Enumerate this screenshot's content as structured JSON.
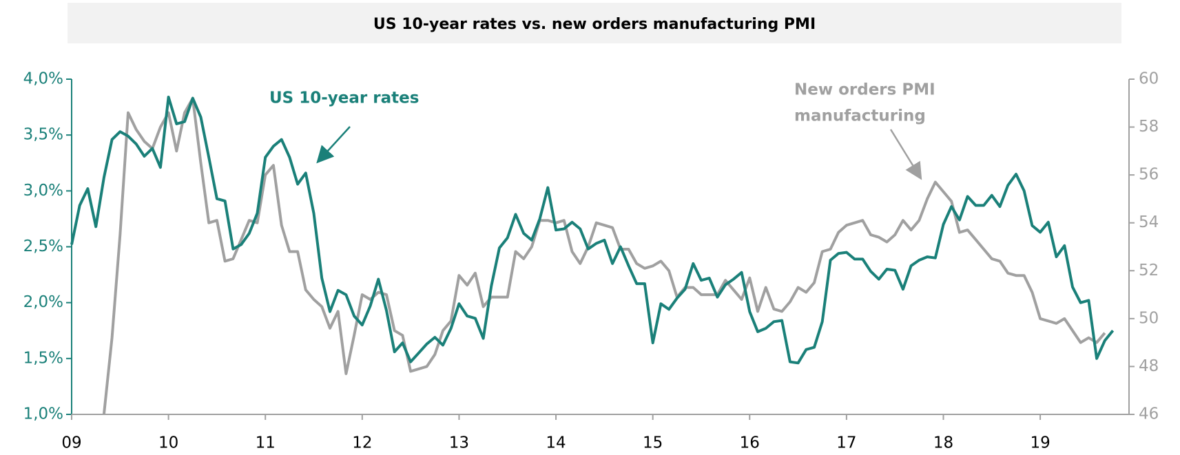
{
  "chart_data": {
    "type": "line",
    "title": "US 10-year rates vs. new orders manufacturing PMI",
    "annotations": [
      "US 10-year rates",
      "New orders PMI",
      "manufacturing"
    ],
    "x": [
      0,
      1,
      2,
      3,
      4,
      5,
      6,
      7,
      8,
      9,
      10,
      11,
      12,
      13,
      14,
      15,
      16,
      17,
      18,
      19,
      20,
      21,
      22,
      23,
      24,
      25,
      26,
      27,
      28,
      29,
      30,
      31,
      32,
      33,
      34,
      35,
      36,
      37,
      38,
      39,
      40,
      41,
      42,
      43,
      44,
      45,
      46,
      47,
      48,
      49,
      50,
      51,
      52,
      53,
      54,
      55,
      56,
      57,
      58,
      59,
      60,
      61,
      62,
      63,
      64,
      65,
      66,
      67,
      68,
      69,
      70,
      71,
      72,
      73,
      74,
      75,
      76,
      77,
      78,
      79,
      80,
      81,
      82,
      83,
      84,
      85,
      86,
      87,
      88,
      89,
      90,
      91,
      92,
      93,
      94,
      95,
      96,
      97,
      98,
      99,
      100,
      101,
      102,
      103,
      104,
      105,
      106,
      107,
      108,
      109,
      110,
      111,
      112,
      113,
      114,
      115,
      116,
      117,
      118,
      119,
      120,
      121,
      122,
      123,
      124,
      125,
      126,
      127,
      128,
      129
    ],
    "xlim": [
      0,
      131
    ],
    "xticks": [
      {
        "value": 0,
        "label": "09"
      },
      {
        "value": 12,
        "label": "10"
      },
      {
        "value": 24,
        "label": "11"
      },
      {
        "value": 36,
        "label": "12"
      },
      {
        "value": 48,
        "label": "13"
      },
      {
        "value": 60,
        "label": "14"
      },
      {
        "value": 72,
        "label": "15"
      },
      {
        "value": 84,
        "label": "16"
      },
      {
        "value": 96,
        "label": "17"
      },
      {
        "value": 108,
        "label": "18"
      },
      {
        "value": 120,
        "label": "19"
      }
    ],
    "ylim": [
      1.0,
      4.0
    ],
    "yticks": [
      {
        "value": 1.0,
        "label": "1,0%"
      },
      {
        "value": 1.5,
        "label": "1,5%"
      },
      {
        "value": 2.0,
        "label": "2,0%"
      },
      {
        "value": 2.5,
        "label": "2,5%"
      },
      {
        "value": 3.0,
        "label": "3,0%"
      },
      {
        "value": 3.5,
        "label": "3,5%"
      },
      {
        "value": 4.0,
        "label": "4,0%"
      }
    ],
    "y2lim": [
      46,
      60
    ],
    "y2ticks": [
      46,
      48,
      50,
      52,
      54,
      56,
      58,
      60
    ],
    "series": [
      {
        "name": "US 10-year rates",
        "color": "#1a8079",
        "axis": "y",
        "values": [
          2.52,
          2.87,
          3.02,
          2.68,
          3.12,
          3.46,
          3.53,
          3.49,
          3.42,
          3.31,
          3.38,
          3.21,
          3.84,
          3.6,
          3.62,
          3.83,
          3.66,
          3.3,
          2.93,
          2.91,
          2.48,
          2.52,
          2.62,
          2.8,
          3.3,
          3.4,
          3.46,
          3.3,
          3.06,
          3.16,
          2.8,
          2.22,
          1.92,
          2.11,
          2.07,
          1.88,
          1.8,
          1.97,
          2.21,
          1.93,
          1.56,
          1.64,
          1.47,
          1.55,
          1.63,
          1.69,
          1.62,
          1.77,
          1.99,
          1.88,
          1.86,
          1.68,
          2.15,
          2.49,
          2.58,
          2.79,
          2.62,
          2.56,
          2.75,
          3.03,
          2.65,
          2.66,
          2.72,
          2.66,
          2.48,
          2.53,
          2.56,
          2.35,
          2.5,
          2.33,
          2.17,
          2.17,
          1.64,
          1.99,
          1.94,
          2.04,
          2.12,
          2.35,
          2.2,
          2.22,
          2.05,
          2.16,
          2.21,
          2.27,
          1.92,
          1.74,
          1.77,
          1.83,
          1.84,
          1.47,
          1.46,
          1.58,
          1.6,
          1.83,
          2.38,
          2.44,
          2.45,
          2.39,
          2.39,
          2.28,
          2.21,
          2.3,
          2.29,
          2.12,
          2.33,
          2.38,
          2.41,
          2.4,
          2.7,
          2.86,
          2.74,
          2.95,
          2.87,
          2.87,
          2.96,
          2.86,
          3.05,
          3.15,
          3.0,
          2.69,
          2.63,
          2.72,
          2.41,
          2.51,
          2.14,
          2.0,
          2.02,
          1.5,
          1.66,
          1.75
        ]
      },
      {
        "name": "New orders PMI manufacturing",
        "color": "#a0a0a0",
        "axis": "y2",
        "values": [
          null,
          null,
          null,
          null,
          46.0,
          49.2,
          53.5,
          58.6,
          57.9,
          57.4,
          57.1,
          58.0,
          58.6,
          57.0,
          58.6,
          59.2,
          56.5,
          54.0,
          54.1,
          52.4,
          52.5,
          53.3,
          54.1,
          54.0,
          56.0,
          56.4,
          53.9,
          52.8,
          52.8,
          51.2,
          50.8,
          50.5,
          49.6,
          50.3,
          47.7,
          49.3,
          51.0,
          50.8,
          51.1,
          51.0,
          49.5,
          49.3,
          47.8,
          47.9,
          48.0,
          48.5,
          49.5,
          49.9,
          51.8,
          51.4,
          51.9,
          50.5,
          50.9,
          50.9,
          50.9,
          52.8,
          52.5,
          53.0,
          54.1,
          54.1,
          54.0,
          54.1,
          52.8,
          52.3,
          53.0,
          54.0,
          53.9,
          53.8,
          52.9,
          52.9,
          52.3,
          52.1,
          52.2,
          52.4,
          52.0,
          50.9,
          51.3,
          51.3,
          51.0,
          51.0,
          51.0,
          51.6,
          51.2,
          50.8,
          51.7,
          50.3,
          51.3,
          50.4,
          50.3,
          50.7,
          51.3,
          51.1,
          51.5,
          52.8,
          52.9,
          53.6,
          53.9,
          54.0,
          54.1,
          53.5,
          53.4,
          53.2,
          53.5,
          54.1,
          53.7,
          54.1,
          55.0,
          55.7,
          55.3,
          54.9,
          53.6,
          53.7,
          53.3,
          52.9,
          52.5,
          52.4,
          51.9,
          51.8,
          51.8,
          51.1,
          50.0,
          49.9,
          49.8,
          50.0,
          49.5,
          49.0,
          49.2,
          49.0,
          49.4,
          null
        ]
      }
    ]
  }
}
